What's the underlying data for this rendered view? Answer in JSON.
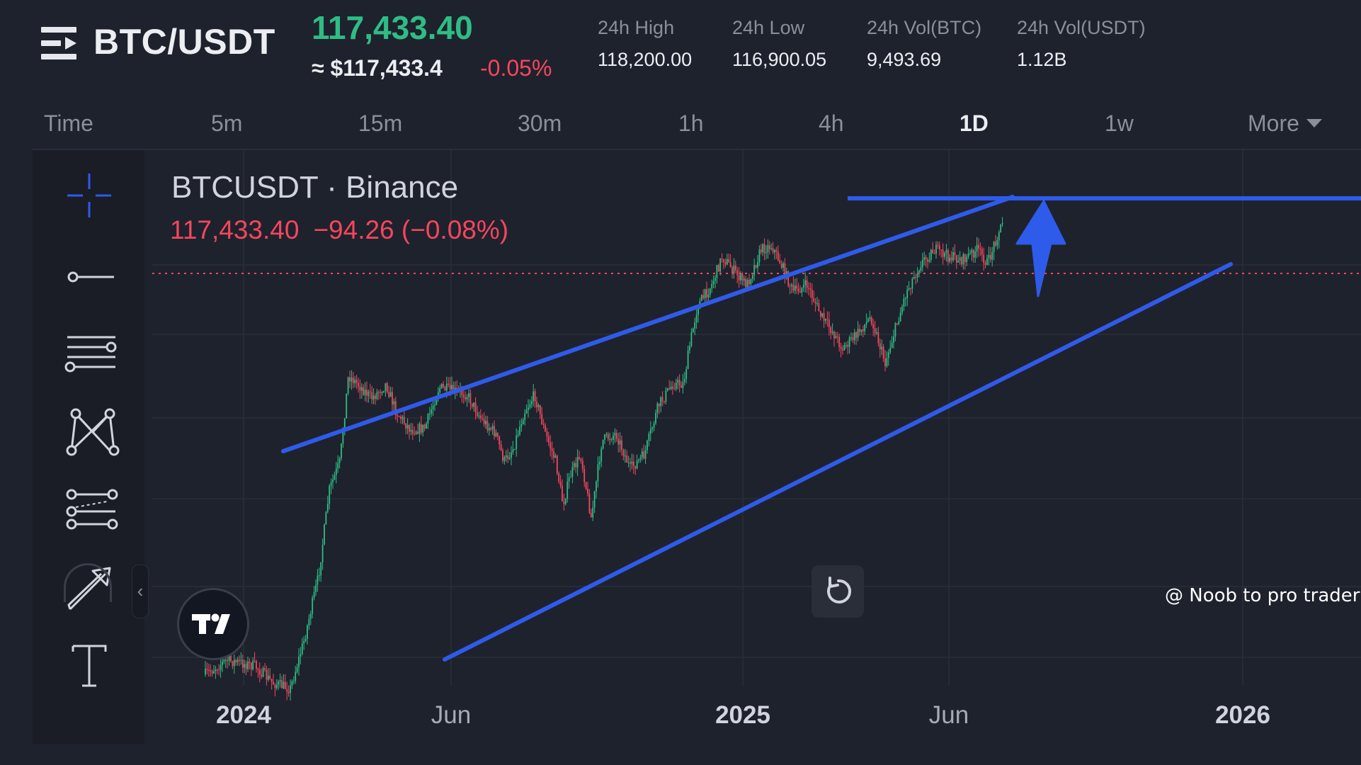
{
  "header": {
    "menu_icon": "hamburger-menu-icon",
    "pair": "BTC/USDT",
    "last_price": "117,433.40",
    "usd_approx": "≈ $117,433.4",
    "pct_change": "-0.05%",
    "stats": [
      {
        "label": "24h High",
        "value": "118,200.00"
      },
      {
        "label": "24h Low",
        "value": "116,900.05"
      },
      {
        "label": "24h Vol(BTC)",
        "value": "9,493.69"
      },
      {
        "label": "24h Vol(USDT)",
        "value": "1.12B"
      }
    ]
  },
  "timeframes": {
    "items": [
      "Time",
      "5m",
      "15m",
      "30m",
      "1h",
      "4h",
      "1D",
      "1w"
    ],
    "more": "More",
    "active": "1D"
  },
  "toolbar": {
    "tools": [
      "crosshair-icon",
      "horizontal-line-icon",
      "fib-levels-icon",
      "pattern-icon",
      "parallel-channel-icon",
      "arrow-tool-icon",
      "text-tool-icon"
    ],
    "collapse_label": "‹"
  },
  "chart": {
    "symbol_title": "BTCUSDT · Binance",
    "ohlc": {
      "price": "117,433.40",
      "change": "−94.26 (−0.08%)"
    },
    "x_axis": [
      {
        "label": "2024",
        "major": true
      },
      {
        "label": "Jun",
        "major": false
      },
      {
        "label": "2025",
        "major": true
      },
      {
        "label": "Jun",
        "major": false
      },
      {
        "label": "2026",
        "major": true
      }
    ],
    "colors": {
      "up": "#2ebd85",
      "down": "#f6465d",
      "drawing": "#2f5bea",
      "grid": "#2a2e39"
    },
    "reset_icon": "reset-icon",
    "logo_icon": "tradingview-logo-icon"
  },
  "watermark": "@ Noob to pro trader"
}
